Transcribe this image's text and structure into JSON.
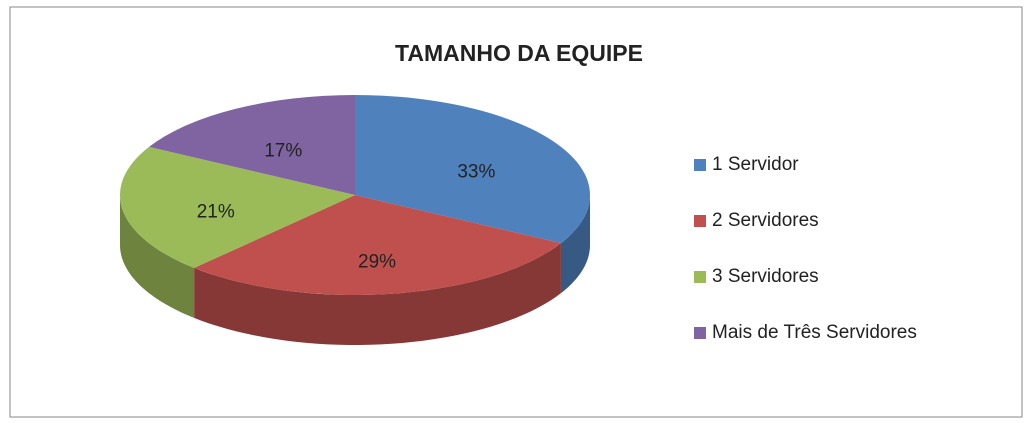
{
  "chart_data": {
    "type": "pie",
    "title": "TAMANHO DA EQUIPE",
    "categories": [
      "1 Servidor",
      "2 Servidores",
      "3 Servidores",
      "Mais de Três Servidores"
    ],
    "values": [
      33,
      29,
      21,
      17
    ],
    "value_labels": [
      "33%",
      "29%",
      "21%",
      "17%"
    ],
    "colors": [
      "#4f81bd",
      "#c0504d",
      "#9bbb59",
      "#8064a2"
    ],
    "legend": "right"
  }
}
